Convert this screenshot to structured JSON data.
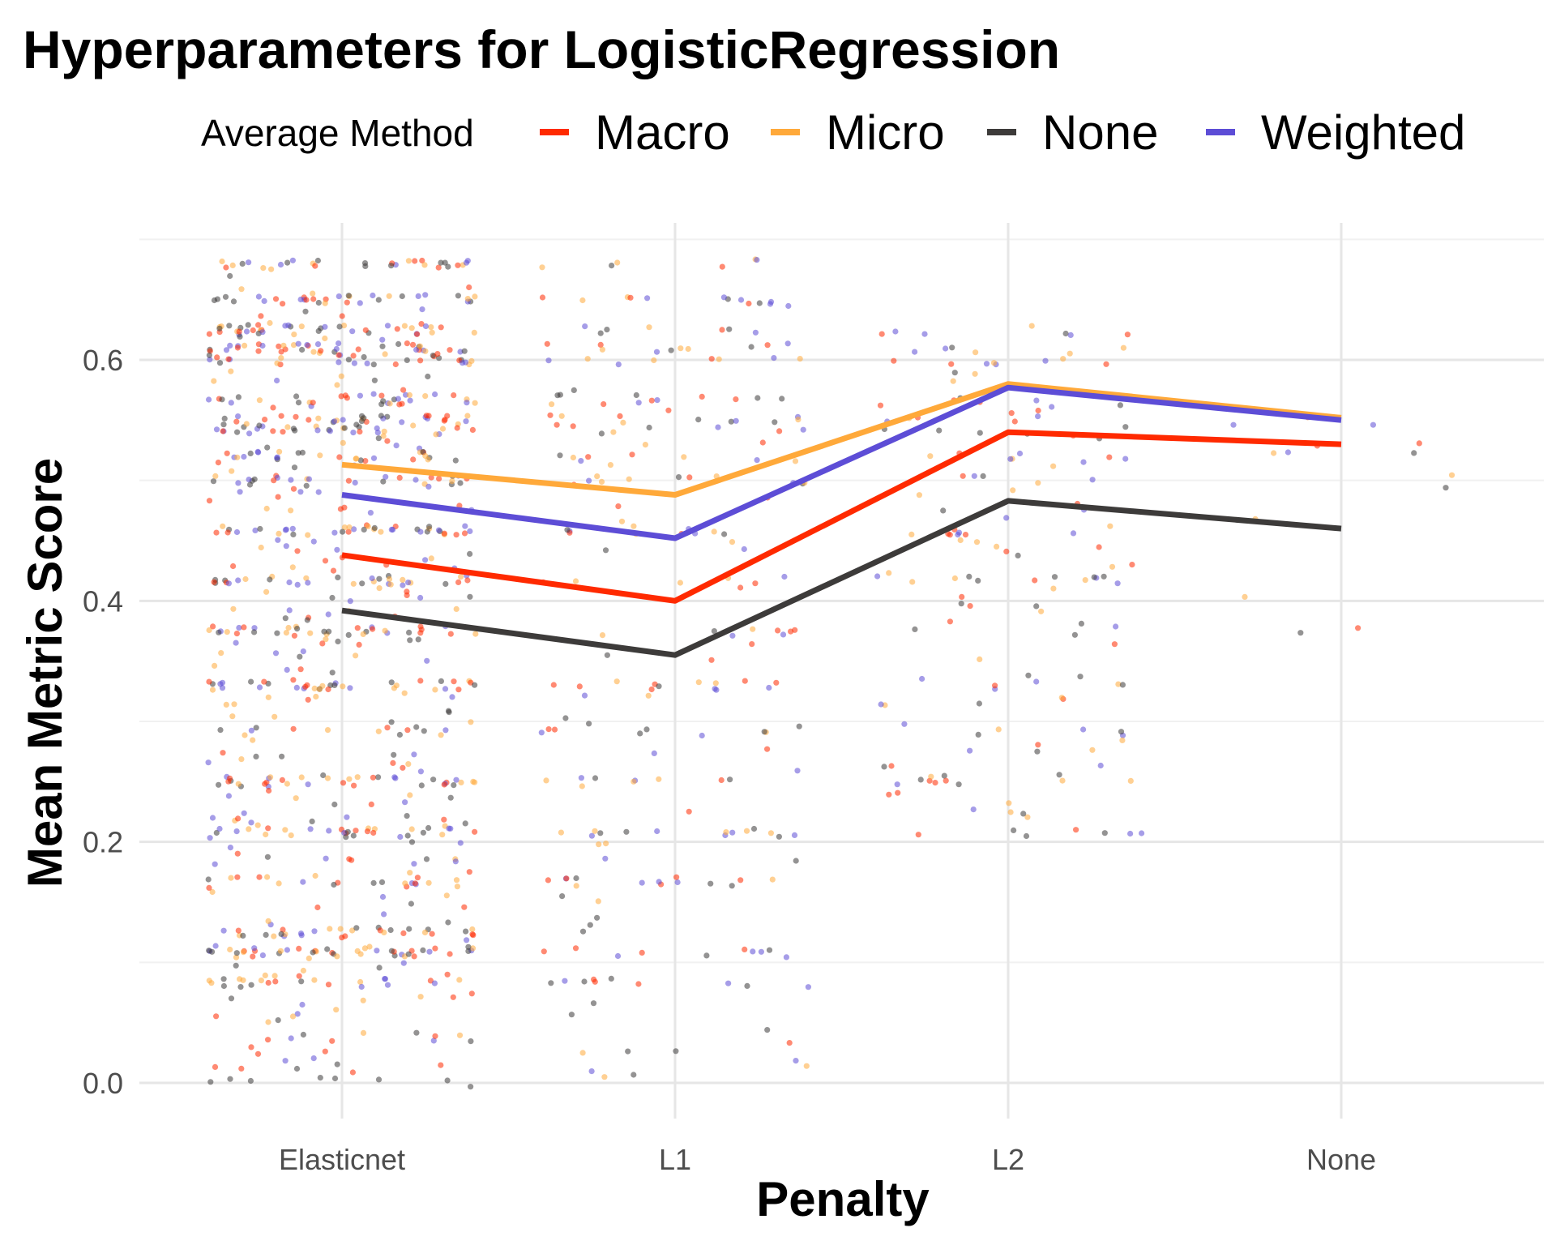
{
  "chart_data": {
    "type": "line",
    "title": "Hyperparameters for LogisticRegression",
    "xlabel": "Penalty",
    "ylabel": "Mean Metric Score",
    "categories": [
      "Elasticnet",
      "L1",
      "L2",
      "None"
    ],
    "y_ticks": [
      0.0,
      0.2,
      0.4,
      0.6
    ],
    "y_tick_labels": [
      "0.0",
      "0.2",
      "0.4",
      "0.6"
    ],
    "ylim": [
      -0.06,
      0.71
    ],
    "grid": true,
    "legend": {
      "title": "Average Method",
      "placement": "top"
    },
    "series": [
      {
        "name": "Macro",
        "color": "#ff2a00",
        "values": [
          0.438,
          0.4,
          0.54,
          0.53
        ]
      },
      {
        "name": "Micro",
        "color": "#ffa93a",
        "values": [
          0.513,
          0.488,
          0.58,
          0.552
        ]
      },
      {
        "name": "None",
        "color": "#3d3b3a",
        "values": [
          0.392,
          0.355,
          0.483,
          0.46
        ]
      },
      {
        "name": "Weighted",
        "color": "#5d4dd6",
        "values": [
          0.488,
          0.452,
          0.577,
          0.55
        ]
      }
    ],
    "jitter_points": {
      "shown": true,
      "point_counts_per_category": [
        900,
        240,
        160,
        14
      ],
      "score_levels": [
        0.0,
        0.083,
        0.108,
        0.125,
        0.167,
        0.208,
        0.25,
        0.292,
        0.33,
        0.375,
        0.417,
        0.458,
        0.5,
        0.52,
        0.542,
        0.55,
        0.567,
        0.6,
        0.61,
        0.625,
        0.65,
        0.68
      ]
    }
  }
}
